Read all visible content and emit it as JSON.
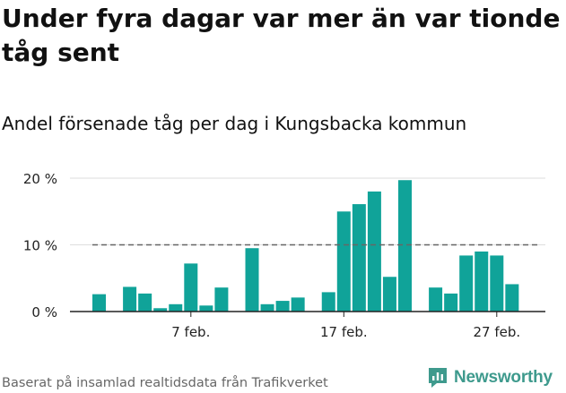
{
  "title": "Under fyra dagar var mer än var tionde tåg sent",
  "subtitle": "Andel försenade tåg per dag i Kungsbacka kommun",
  "source": "Baserat på insamlad realtidsdata från Trafikverket",
  "brand": {
    "name": "Newsworthy",
    "color": "#3e9a8d"
  },
  "colors": {
    "bar": "#10a399",
    "reference_line": "#666666",
    "grid": "#dddddd",
    "axis": "#222222"
  },
  "chart_data": {
    "type": "bar",
    "title": "Andel försenade tåg per dag i Kungsbacka kommun",
    "xlabel": "",
    "ylabel": "",
    "ylim": [
      0,
      20
    ],
    "yticks": [
      0,
      10,
      20
    ],
    "ytick_labels": [
      "0 %",
      "10 %",
      "20 %"
    ],
    "xtick_labels": [
      {
        "day": 7,
        "label": "7 feb."
      },
      {
        "day": 17,
        "label": "17 feb."
      },
      {
        "day": 27,
        "label": "27 feb."
      }
    ],
    "reference_line": {
      "value": 10,
      "style": "dashed",
      "from_day": 1,
      "to_day": 30
    },
    "categories": [
      "1 feb.",
      "2 feb.",
      "3 feb.",
      "4 feb.",
      "5 feb.",
      "6 feb.",
      "7 feb.",
      "8 feb.",
      "9 feb.",
      "10 feb.",
      "11 feb.",
      "12 feb.",
      "13 feb.",
      "14 feb.",
      "15 feb.",
      "16 feb.",
      "17 feb.",
      "18 feb.",
      "19 feb.",
      "20 feb.",
      "21 feb.",
      "22 feb.",
      "23 feb.",
      "24 feb.",
      "25 feb.",
      "26 feb.",
      "27 feb.",
      "28 feb.",
      "29 feb."
    ],
    "values": [
      2.6,
      null,
      3.7,
      2.7,
      0.5,
      1.1,
      7.2,
      0.9,
      3.6,
      null,
      9.5,
      1.1,
      1.6,
      2.1,
      null,
      2.9,
      15.0,
      16.1,
      18.0,
      5.2,
      19.7,
      null,
      3.6,
      2.7,
      8.4,
      9.0,
      8.4,
      4.1,
      null
    ],
    "legend": "none",
    "grid": true
  }
}
